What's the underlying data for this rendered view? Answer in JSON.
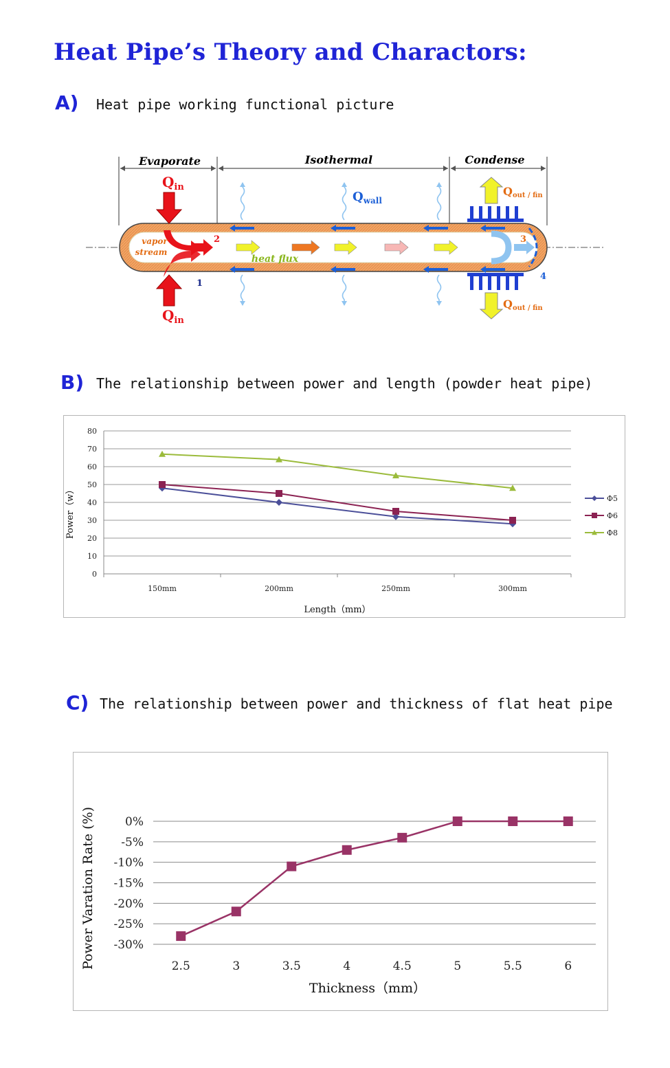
{
  "title": "Heat Pipe’s Theory and Charactors:",
  "sections": {
    "a": {
      "letter": "A)",
      "text": "Heat pipe working functional picture"
    },
    "b": {
      "letter": "B)",
      "text": "The relationship between power and length (powder heat pipe)"
    },
    "c": {
      "letter": "C)",
      "text": "The relationship between power and thickness of flat heat pipe"
    }
  },
  "diagram": {
    "zones": [
      "Evaporate",
      "Isothermal",
      "Condense"
    ],
    "q_in": "Q",
    "q_in_sub": "in",
    "q_wall": "Q",
    "q_wall_sub": "wall",
    "q_out": "Q",
    "q_out_sub": "out / fin",
    "vapor_stream_1": "vapor",
    "vapor_stream_2": "stream",
    "heat_flux": "heat flux",
    "markers": [
      "1",
      "2",
      "3",
      "4"
    ],
    "colors": {
      "wall": "#f0a05a",
      "outline": "#4a4a4a",
      "arrow_red": "#e8131a",
      "arrow_yellow": "#f1f22a",
      "arrow_orange": "#ee7722",
      "arrow_pink": "#f7b7b5",
      "fin_blue": "#1f3fd1",
      "label_orange": "#e36b12",
      "flux_green": "#8ab61d"
    }
  },
  "chart_data": [
    {
      "type": "line",
      "categories": [
        "150mm",
        "200mm",
        "250mm",
        "300mm"
      ],
      "series": [
        {
          "name": "Φ5",
          "values": [
            48,
            40,
            32,
            28
          ],
          "color": "#4b4f99",
          "marker": "diamond"
        },
        {
          "name": "Φ6",
          "values": [
            50,
            45,
            35,
            30
          ],
          "color": "#8b2252",
          "marker": "square"
        },
        {
          "name": "Φ8",
          "values": [
            67,
            64,
            55,
            48
          ],
          "color": "#9bbb3b",
          "marker": "triangle"
        }
      ],
      "xlabel": "Length（mm）",
      "ylabel": "Power（w）",
      "ylim": [
        0,
        80
      ],
      "yticks": [
        "0",
        "10",
        "20",
        "30",
        "40",
        "50",
        "60",
        "70",
        "80"
      ],
      "grid": true,
      "legend": "right"
    },
    {
      "type": "line",
      "categories": [
        "2.5",
        "3",
        "3.5",
        "4",
        "4.5",
        "5",
        "5.5",
        "6"
      ],
      "series": [
        {
          "values": [
            -28,
            -22,
            -11,
            -7,
            -4,
            0,
            0,
            0
          ],
          "color": "#993366",
          "marker": "square"
        }
      ],
      "xlabel": "Thickness（mm）",
      "ylabel": "Power Varation Rate (%)",
      "ylim": [
        -30,
        0
      ],
      "yticks": [
        "0%",
        "-5%",
        "-10%",
        "-15%",
        "-20%",
        "-25%",
        "-30%"
      ],
      "grid": true,
      "legend": "none"
    }
  ]
}
